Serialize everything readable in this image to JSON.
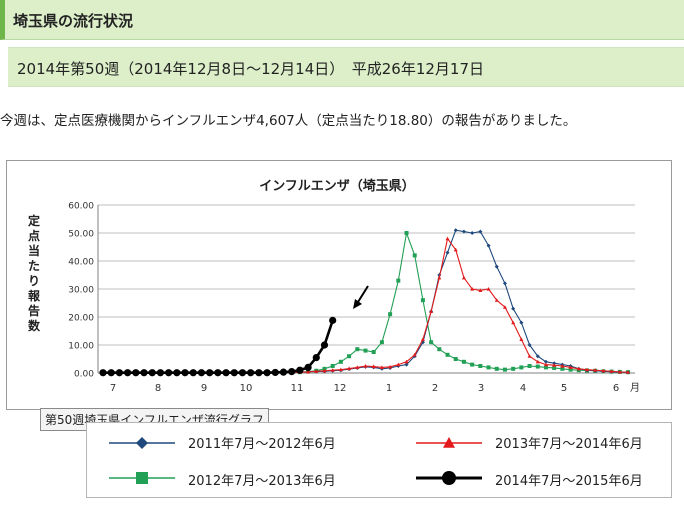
{
  "header": {
    "title": "埼玉県の流行状況",
    "week": "2014年第50週（2014年12月8日～12月14日）　平成26年12月17日"
  },
  "intro": "今週は、定点医療機関からインフルエンザ4,607人（定点当たり18.80）の報告がありました。",
  "caption": "第50週埼玉県インフルエンザ流行グラフ",
  "chart_data": {
    "type": "line",
    "title": "インフルエンザ（埼玉県）",
    "ylabel": "定点当たり報告数",
    "xlabel": "月",
    "ylim": [
      0,
      60
    ],
    "yticks": [
      "0.00",
      "10.00",
      "20.00",
      "30.00",
      "40.00",
      "50.00",
      "60.00"
    ],
    "xticks": [
      "7",
      "8",
      "9",
      "10",
      "11",
      "12",
      "1",
      "2",
      "3",
      "4",
      "5",
      "6"
    ],
    "grid": true,
    "legend_position": "bottom",
    "series": [
      {
        "name": "2011年7月～2012年6月",
        "color": "#1f497d",
        "marker": "diamond",
        "values": [
          0.1,
          0.1,
          0.1,
          0.1,
          0.1,
          0.1,
          0.1,
          0.1,
          0.1,
          0.1,
          0.1,
          0.1,
          0.1,
          0.1,
          0.1,
          0.1,
          0.1,
          0.1,
          0.1,
          0.1,
          0.1,
          0.1,
          0.1,
          0.2,
          0.3,
          0.4,
          0.5,
          0.6,
          0.8,
          1.0,
          1.4,
          1.8,
          2.2,
          2.0,
          1.5,
          1.8,
          2.5,
          3.0,
          6.0,
          11.0,
          22.0,
          35.0,
          43.0,
          51.0,
          50.5,
          50.0,
          50.5,
          45.5,
          38.0,
          32.0,
          23.0,
          18.0,
          10.0,
          6.0,
          4.0,
          3.5,
          3.0,
          2.5,
          1.5,
          1.0,
          0.8,
          0.6,
          0.4,
          0.3,
          0.2
        ]
      },
      {
        "name": "2013年7月～2014年6月",
        "color": "#e31a1c",
        "marker": "triangle",
        "values": [
          0.1,
          0.1,
          0.1,
          0.1,
          0.1,
          0.1,
          0.1,
          0.1,
          0.1,
          0.1,
          0.1,
          0.1,
          0.1,
          0.1,
          0.1,
          0.1,
          0.1,
          0.1,
          0.1,
          0.1,
          0.1,
          0.1,
          0.1,
          0.2,
          0.3,
          0.4,
          0.6,
          0.8,
          1.0,
          1.2,
          1.6,
          2.0,
          2.5,
          2.3,
          2.0,
          2.2,
          3.0,
          4.0,
          6.5,
          12.0,
          22.0,
          34.0,
          48.0,
          44.0,
          34.0,
          30.0,
          29.5,
          30.0,
          26.0,
          23.5,
          18.0,
          12.0,
          6.0,
          4.0,
          3.0,
          2.8,
          2.5,
          2.0,
          1.5,
          1.2,
          1.0,
          0.8,
          0.6,
          0.4,
          0.3
        ]
      },
      {
        "name": "2012年7月～2013年6月",
        "color": "#22a056",
        "marker": "square",
        "values": [
          0.1,
          0.1,
          0.1,
          0.1,
          0.1,
          0.1,
          0.1,
          0.1,
          0.1,
          0.1,
          0.1,
          0.1,
          0.1,
          0.1,
          0.1,
          0.1,
          0.1,
          0.1,
          0.1,
          0.1,
          0.1,
          0.1,
          0.1,
          0.2,
          0.3,
          0.5,
          0.8,
          1.5,
          2.5,
          4.0,
          6.0,
          8.5,
          8.0,
          7.5,
          11.0,
          21.0,
          33.0,
          50.0,
          42.0,
          26.0,
          11.0,
          8.5,
          6.5,
          5.0,
          4.0,
          3.0,
          2.5,
          2.0,
          1.5,
          1.2,
          1.5,
          2.0,
          2.5,
          2.3,
          2.0,
          1.8,
          1.5,
          1.2,
          1.0,
          0.9,
          0.8,
          0.6,
          0.5,
          0.4,
          0.3
        ]
      },
      {
        "name": "2014年7月～2015年6月",
        "color": "#000000",
        "marker": "circle",
        "values": [
          0.1,
          0.1,
          0.1,
          0.1,
          0.1,
          0.1,
          0.1,
          0.1,
          0.1,
          0.1,
          0.1,
          0.1,
          0.1,
          0.1,
          0.1,
          0.1,
          0.1,
          0.1,
          0.1,
          0.1,
          0.1,
          0.2,
          0.3,
          0.5,
          1.0,
          2.0,
          5.5,
          10.0,
          18.8
        ]
      }
    ]
  }
}
